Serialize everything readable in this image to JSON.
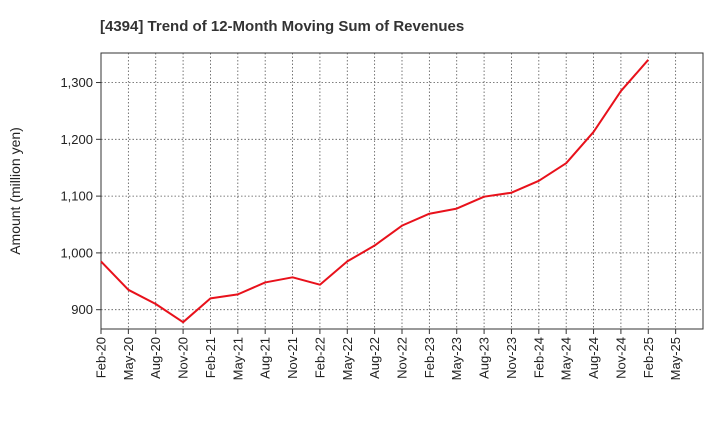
{
  "chart_data": {
    "type": "line",
    "title": "[4394]  Trend of 12-Month Moving Sum of Revenues",
    "xlabel": "",
    "ylabel": "Amount (million yen)",
    "ylim": [
      866,
      1352
    ],
    "y_ticks": [
      900,
      1000,
      1100,
      1200,
      1300
    ],
    "y_tick_labels": [
      "900",
      "1,000",
      "1,100",
      "1,200",
      "1,300"
    ],
    "grid": true,
    "x_tick_labels": [
      "Feb-20",
      "May-20",
      "Aug-20",
      "Nov-20",
      "Feb-21",
      "May-21",
      "Aug-21",
      "Nov-21",
      "Feb-22",
      "May-22",
      "Aug-22",
      "Nov-22",
      "Feb-23",
      "May-23",
      "Aug-23",
      "Nov-23",
      "Feb-24",
      "May-24",
      "Aug-24",
      "Nov-24",
      "Feb-25",
      "May-25"
    ],
    "series": [
      {
        "color": "#e8111b",
        "x": [
          "Feb-20",
          "May-20",
          "Aug-20",
          "Nov-20",
          "Feb-21",
          "May-21",
          "Aug-21",
          "Nov-21",
          "Feb-22",
          "May-22",
          "Aug-22",
          "Nov-22",
          "Feb-23",
          "May-23",
          "Aug-23",
          "Nov-23",
          "Feb-24",
          "May-24",
          "Aug-24",
          "Nov-24",
          "Feb-25"
        ],
        "values": [
          985,
          935,
          910,
          878,
          920,
          927,
          948,
          957,
          944,
          985,
          1013,
          1048,
          1069,
          1078,
          1099,
          1106,
          1127,
          1158,
          1213,
          1285,
          1340
        ]
      }
    ]
  }
}
